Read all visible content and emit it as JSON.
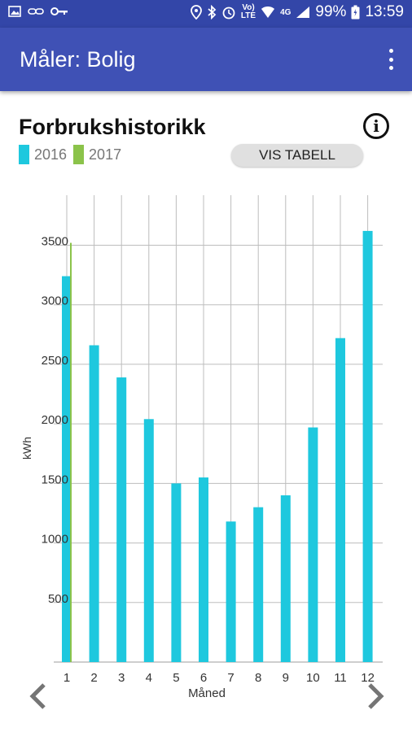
{
  "statusbar": {
    "battery": "99%",
    "time": "13:59",
    "icons_left": [
      "image-icon",
      "link-icon",
      "key-icon"
    ],
    "icons_right": [
      "location-icon",
      "bluetooth-icon",
      "alarm-icon",
      "volte-icon",
      "wifi-icon",
      "4g-icon",
      "signal-icon",
      "battery-icon"
    ],
    "volte_label_top": "Vo)",
    "volte_label_bottom": "LTE",
    "net_label": "4G"
  },
  "appbar": {
    "title": "Måler: Bolig",
    "menu_icon": "more-vert-icon"
  },
  "header": {
    "title": "Forbrukshistorikk",
    "info_label": "i",
    "show_table_label": "VIS TABELL"
  },
  "colors": {
    "statusbar": "#3346a8",
    "appbar": "#3f51b5",
    "series_2016": "#1ec8de",
    "series_2017": "#8bc34a"
  },
  "chart_data": {
    "type": "bar",
    "title": "",
    "xlabel": "Måned",
    "ylabel": "kWh",
    "categories": [
      "1",
      "2",
      "3",
      "4",
      "5",
      "6",
      "7",
      "8",
      "9",
      "10",
      "11",
      "12"
    ],
    "series": [
      {
        "name": "2016",
        "color": "#1ec8de",
        "values": [
          3240,
          2660,
          2390,
          2040,
          1500,
          1550,
          1180,
          1300,
          1400,
          1970,
          2720,
          3620
        ]
      },
      {
        "name": "2017",
        "color": "#8bc34a",
        "values": [
          3520,
          null,
          null,
          null,
          null,
          null,
          null,
          null,
          null,
          null,
          null,
          null
        ]
      }
    ],
    "yticks": [
      500,
      1000,
      1500,
      2000,
      2500,
      3000,
      3500
    ],
    "ylim": [
      0,
      3920
    ],
    "grid": true,
    "legend": "top-left"
  },
  "nav": {
    "prev_icon": "chevron-left-icon",
    "next_icon": "chevron-right-icon"
  }
}
